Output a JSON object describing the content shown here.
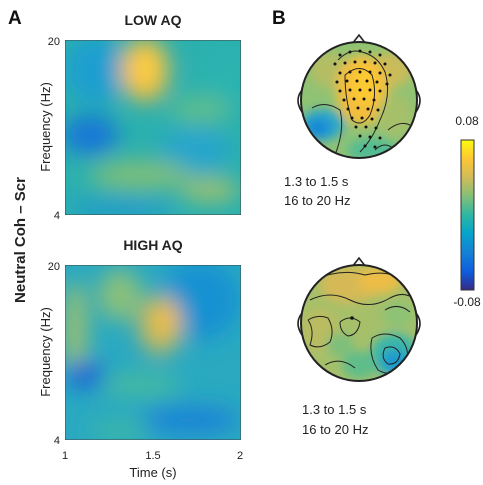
{
  "panel_labels": {
    "a": "A",
    "b": "B"
  },
  "row_label": "Neutral Coh – Scr",
  "colorbar": {
    "max_label": "0.08",
    "min_label": "-0.08"
  },
  "chart_data": [
    {
      "type": "heatmap",
      "title": "LOW AQ",
      "xlabel": "",
      "ylabel": "Frequency (Hz)",
      "xlim": [
        1,
        2
      ],
      "ylim": [
        4,
        20
      ],
      "yticks": [
        "20",
        "4"
      ],
      "colormap": "parula",
      "clim": [
        -0.08,
        0.08
      ],
      "features": [
        {
          "t": 1.47,
          "f": 17.5,
          "value": 0.08
        },
        {
          "t": 1.17,
          "f": 12.0,
          "value": -0.045
        },
        {
          "t": 1.75,
          "f": 8.0,
          "value": 0.03
        },
        {
          "t": 1.3,
          "f": 8.5,
          "value": 0.035
        },
        {
          "t": 1.3,
          "f": 18.0,
          "value": -0.02
        }
      ]
    },
    {
      "type": "heatmap",
      "title": "HIGH AQ",
      "xlabel": "Time (s)",
      "ylabel": "Frequency (Hz)",
      "xlim": [
        1,
        2
      ],
      "ylim": [
        4,
        20
      ],
      "xticks": [
        "1",
        "1.5",
        "2"
      ],
      "yticks": [
        "20",
        "4"
      ],
      "colormap": "parula",
      "clim": [
        -0.08,
        0.08
      ],
      "features": [
        {
          "t": 1.6,
          "f": 15.0,
          "value": 0.065
        },
        {
          "t": 1.4,
          "f": 18.5,
          "value": 0.04
        },
        {
          "t": 1.1,
          "f": 10.0,
          "value": -0.05
        },
        {
          "t": 1.25,
          "f": 5.5,
          "value": -0.025
        }
      ]
    }
  ],
  "topomaps": [
    {
      "caption_time": "1.3 to 1.5 s",
      "caption_freq": "16 to 20 Hz"
    },
    {
      "caption_time": "1.3 to 1.5 s",
      "caption_freq": "16 to 20 Hz"
    }
  ],
  "colors": {
    "parula_stops": [
      "#352a87",
      "#0f5cdd",
      "#1481d6",
      "#06a4ca",
      "#2eb7a4",
      "#87bf77",
      "#d1bb59",
      "#fec832",
      "#f9fb0e"
    ]
  }
}
